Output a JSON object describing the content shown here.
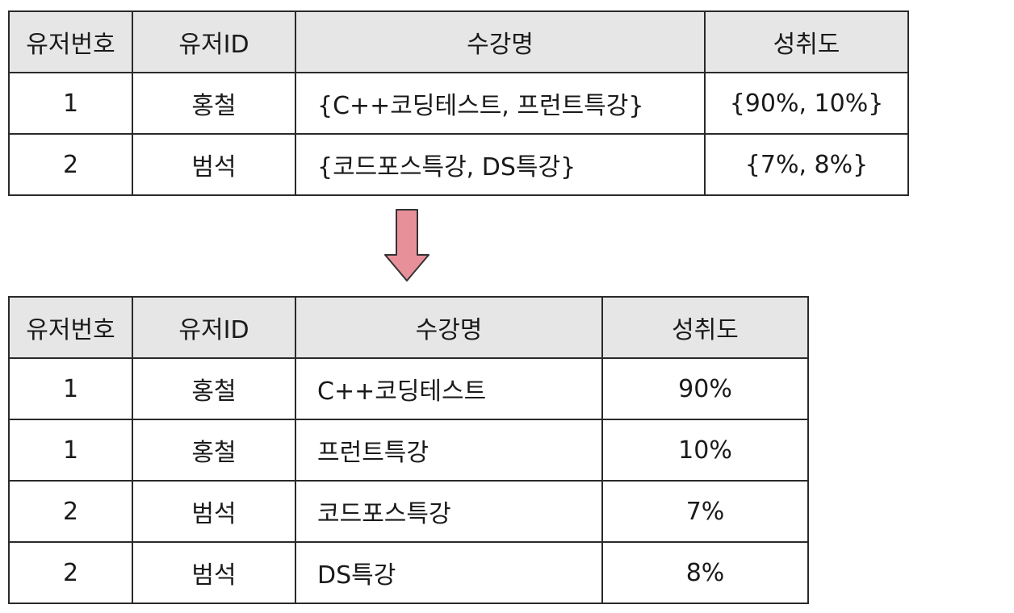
{
  "headers": [
    "유저번호",
    "유저ID",
    "수강명",
    "성취도"
  ],
  "before": {
    "rows": [
      {
        "user_no": "1",
        "user_id": "홍철",
        "courses": "{C++코딩테스트, 프런트특강}",
        "achievement": "{90%, 10%}"
      },
      {
        "user_no": "2",
        "user_id": "범석",
        "courses": "{코드포스특강, DS특강}",
        "achievement": "{7%, 8%}"
      }
    ]
  },
  "after": {
    "rows": [
      {
        "user_no": "1",
        "user_id": "홍철",
        "course": "C++코딩테스트",
        "achievement": "90%"
      },
      {
        "user_no": "1",
        "user_id": "홍철",
        "course": "프런트특강",
        "achievement": "10%"
      },
      {
        "user_no": "2",
        "user_id": "범석",
        "course": "코드포스특강",
        "achievement": "7%"
      },
      {
        "user_no": "2",
        "user_id": "범석",
        "course": "DS특강",
        "achievement": "8%"
      }
    ]
  },
  "colors": {
    "header_bg": "#e6e6e6",
    "arrow_fill": "#e8909a",
    "border": "#2a2a2a"
  },
  "icons": {
    "arrow": "down-arrow-icon"
  }
}
